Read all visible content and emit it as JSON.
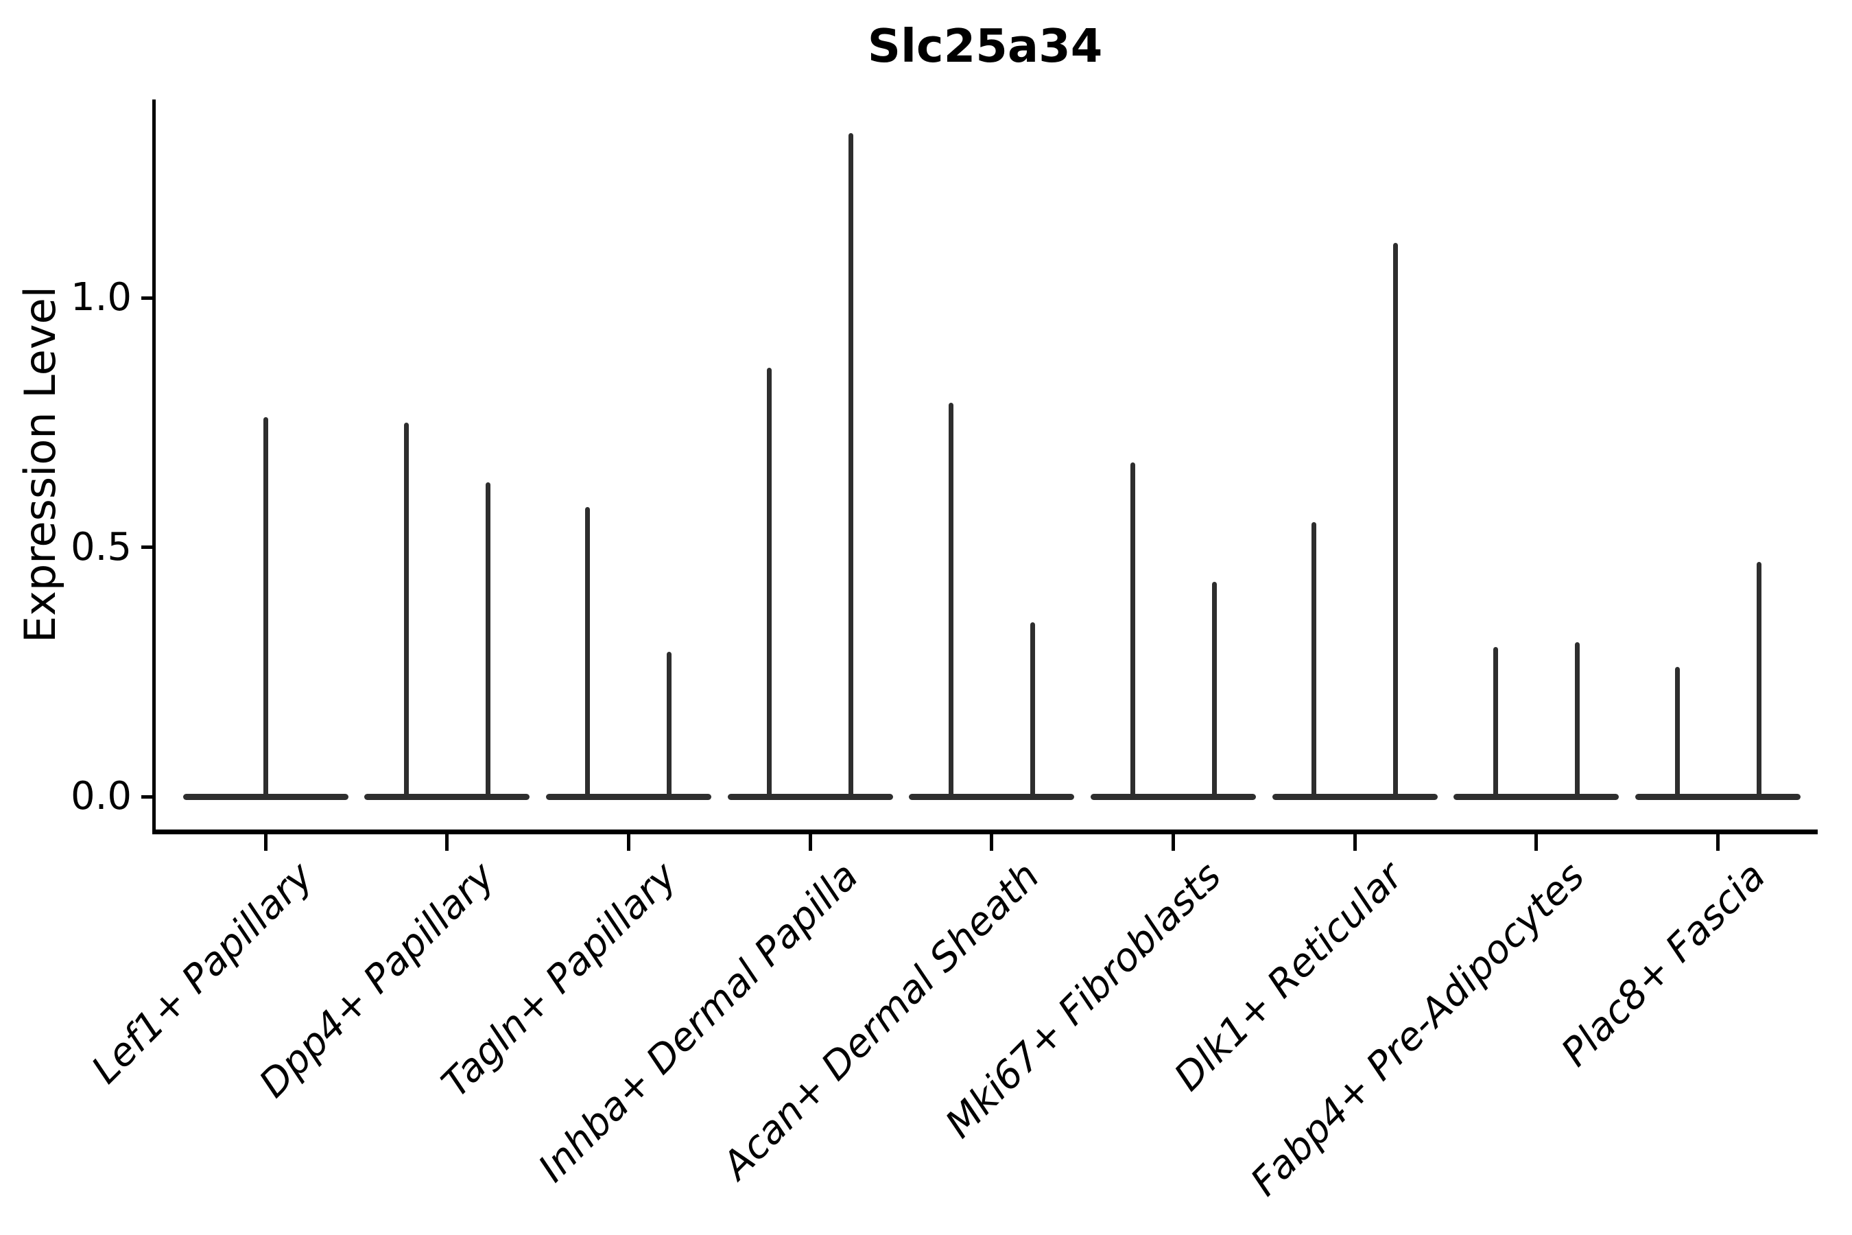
{
  "title": "Slc25a34",
  "axes": {
    "y_label": "Expression Level",
    "y_tick_labels": [
      "0.0",
      "0.5",
      "1.0"
    ]
  },
  "colors": {
    "violin": "#2e2e2e",
    "spine": "#000000",
    "text": "#000000",
    "background": "#ffffff"
  },
  "chart_data": {
    "type": "violin",
    "title": "Slc25a34",
    "xlabel": "",
    "ylabel": "Expression Level",
    "y_ticks": [
      0.0,
      0.5,
      1.0
    ],
    "ylim": [
      -0.07,
      1.41
    ],
    "grid": false,
    "legend": "none",
    "categories": [
      "Lef1+ Papillary",
      "Dpp4+ Papillary",
      "Tagln+ Papillary",
      "Inhba+ Dermal Papilla",
      "Acan+ Dermal Sheath",
      "Mki67+ Fibroblasts",
      "Dlk1+ Reticular",
      "Fabp4+ Pre-Adipocytes",
      "Plac8+ Fascia"
    ],
    "series": [
      {
        "category": "Lef1+ Papillary",
        "spike_maxima": [
          0.76
        ]
      },
      {
        "category": "Dpp4+ Papillary",
        "spike_maxima": [
          0.75,
          0.63
        ]
      },
      {
        "category": "Tagln+ Papillary",
        "spike_maxima": [
          0.58,
          0.29
        ]
      },
      {
        "category": "Inhba+ Dermal Papilla",
        "spike_maxima": [
          0.86,
          1.33
        ]
      },
      {
        "category": "Acan+ Dermal Sheath",
        "spike_maxima": [
          0.79,
          0.35
        ]
      },
      {
        "category": "Mki67+ Fibroblasts",
        "spike_maxima": [
          0.67,
          0.43
        ]
      },
      {
        "category": "Dlk1+ Reticular",
        "spike_maxima": [
          0.55,
          1.11
        ]
      },
      {
        "category": "Fabp4+ Pre-Adipocytes",
        "spike_maxima": [
          0.3,
          0.31
        ]
      },
      {
        "category": "Plac8+ Fascia",
        "spike_maxima": [
          0.26,
          0.47
        ]
      }
    ]
  }
}
